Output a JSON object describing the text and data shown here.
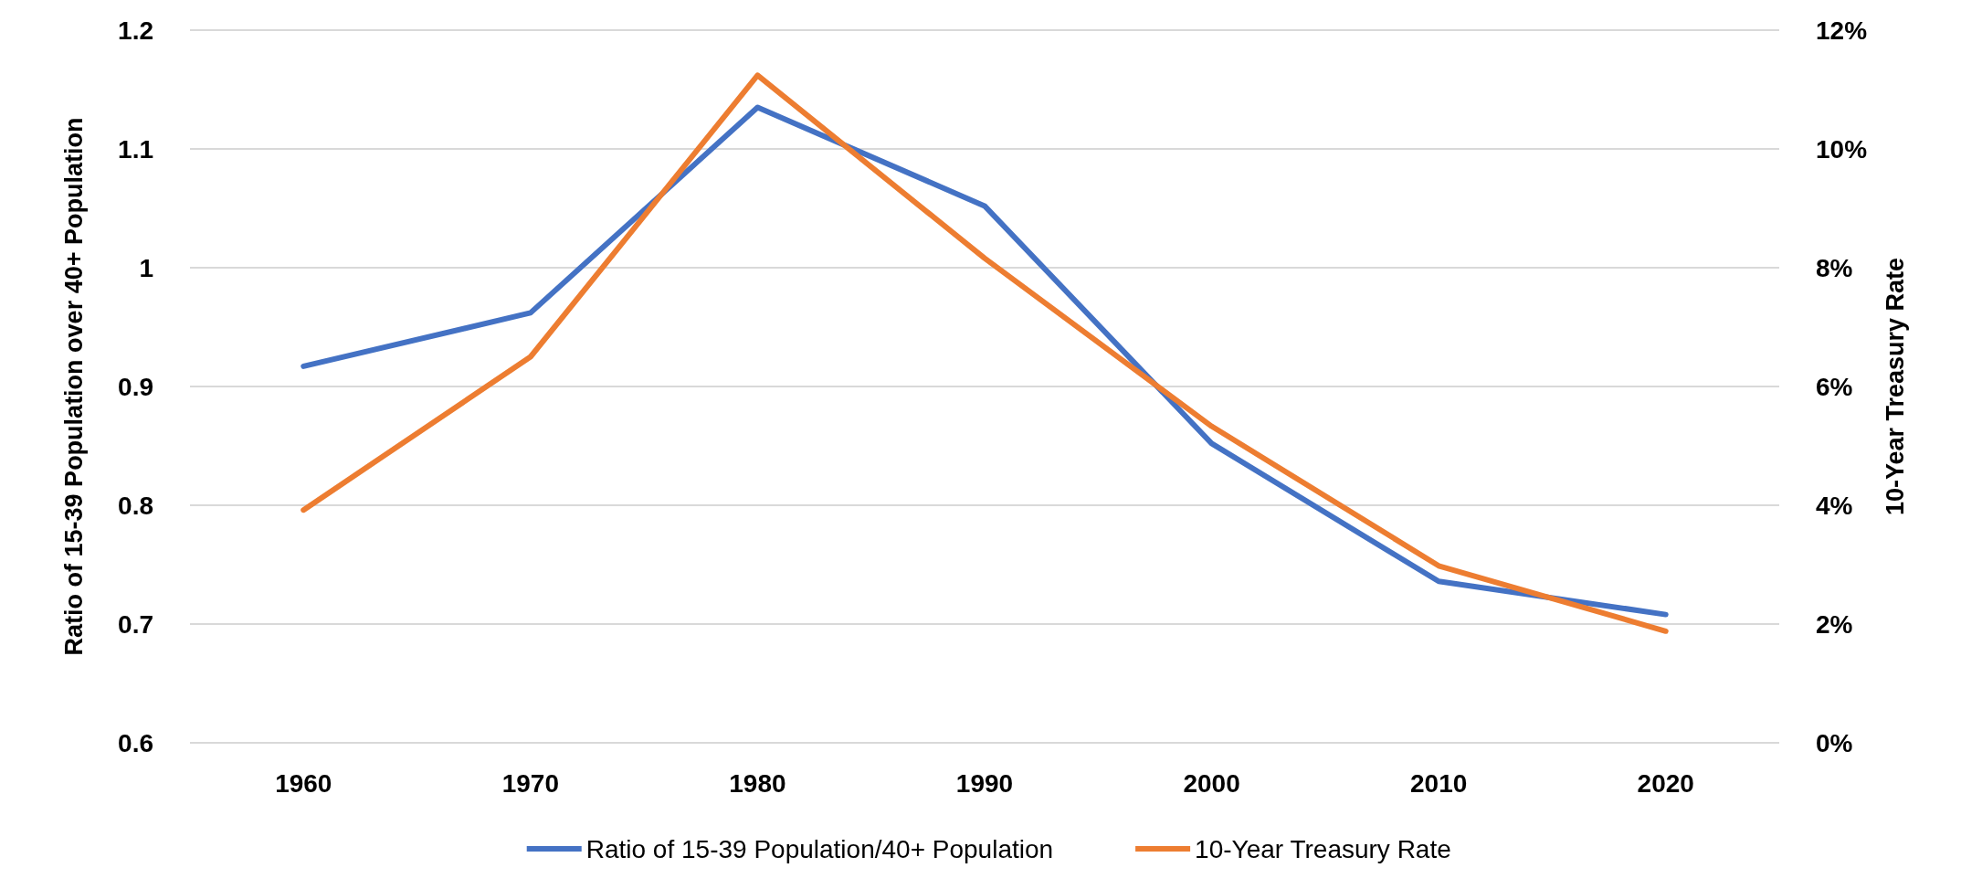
{
  "chart_data": {
    "type": "line",
    "ylabel": "Ratio of 15-39 Population over 40+ Population",
    "y2label": "10-Year Treasury Rate",
    "categories": [
      "1960",
      "1970",
      "1980",
      "1990",
      "2000",
      "2010",
      "2020"
    ],
    "series": [
      {
        "name": "Ratio of 15-39 Population/40+ Population",
        "color": "#4472c4",
        "values": [
          0.917,
          0.962,
          1.135,
          1.052,
          0.852,
          0.736,
          0.708
        ]
      },
      {
        "name": "10-Year Treasury Rate",
        "color": "#ed7d31",
        "axis": "y2",
        "values": [
          3.92,
          6.5,
          11.24,
          8.16,
          5.33,
          2.98,
          1.88
        ]
      }
    ],
    "ylim": [
      0.6,
      1.2
    ],
    "yticks": [
      0.6,
      0.7,
      0.8,
      0.9,
      1,
      1.1,
      1.2
    ],
    "y2lim": [
      0,
      12
    ],
    "y2ticks": [
      {
        "value": 0,
        "label": "0%"
      },
      {
        "value": 2,
        "label": "2%"
      },
      {
        "value": 4,
        "label": "4%"
      },
      {
        "value": 6,
        "label": "6%"
      },
      {
        "value": 8,
        "label": "8%"
      },
      {
        "value": 10,
        "label": "10%"
      },
      {
        "value": 12,
        "label": "12%"
      }
    ],
    "grid": "y",
    "legend": "bottom",
    "marker": "none",
    "line_style": "solid"
  }
}
